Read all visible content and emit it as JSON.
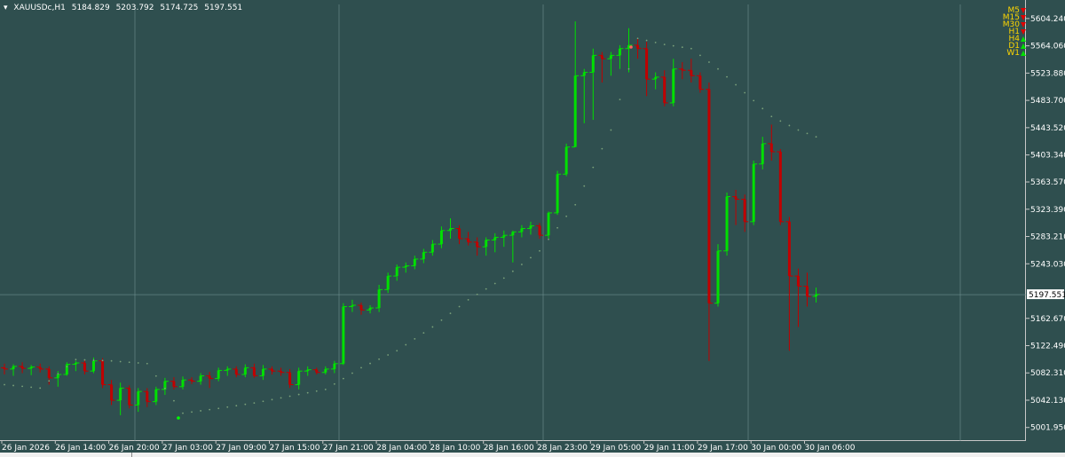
{
  "header": {
    "symbol": "XAUUSDc,H1",
    "open": "5184.829",
    "high": "5203.792",
    "low": "5174.725",
    "close": "5197.551",
    "menu_icon": "chevron-down-icon"
  },
  "timeframes": [
    {
      "label": "M5",
      "direction": "down"
    },
    {
      "label": "M15",
      "direction": "down"
    },
    {
      "label": "M30",
      "direction": "down"
    },
    {
      "label": "H1",
      "direction": "down"
    },
    {
      "label": "H4",
      "direction": "up"
    },
    {
      "label": "D1",
      "direction": "up"
    },
    {
      "label": "W1",
      "direction": "up"
    }
  ],
  "colors": {
    "background": "#2f4f4f",
    "bull": "#00e000",
    "bear": "#c00000",
    "grid": "#6f8f8f",
    "psar": "#7aa07a",
    "axis_text": "#ffffff",
    "current_price_bg": "#ffffff"
  },
  "current_price_label": "5197.551",
  "chart_data": {
    "type": "candlestick",
    "timeframe": "H1",
    "ylim": [
      1981.0,
      5625.0
    ],
    "y_ticks": [
      "5604.240",
      "5564.060",
      "5523.880",
      "5483.700",
      "5443.520",
      "5403.340",
      "5363.570",
      "5323.390",
      "5283.210",
      "5243.030",
      "5162.670",
      "5122.490",
      "5082.310",
      "5042.130",
      "5001.950"
    ],
    "x_ticks": [
      "26 Jan 2026",
      "26 Jan 14:00",
      "26 Jan 20:00",
      "27 Jan 03:00",
      "27 Jan 09:00",
      "27 Jan 15:00",
      "27 Jan 21:00",
      "28 Jan 04:00",
      "28 Jan 10:00",
      "28 Jan 16:00",
      "28 Jan 23:00",
      "29 Jan 05:00",
      "29 Jan 11:00",
      "29 Jan 17:00",
      "30 Jan 00:00",
      "30 Jan 06:00"
    ],
    "grid": "partial",
    "candles": [
      {
        "o": 5090,
        "h": 5096,
        "l": 5080,
        "c": 5088
      },
      {
        "o": 5088,
        "h": 5095,
        "l": 5078,
        "c": 5092
      },
      {
        "o": 5092,
        "h": 5098,
        "l": 5082,
        "c": 5089
      },
      {
        "o": 5089,
        "h": 5094,
        "l": 5079,
        "c": 5091
      },
      {
        "o": 5091,
        "h": 5096,
        "l": 5083,
        "c": 5088
      },
      {
        "o": 5088,
        "h": 5092,
        "l": 5065,
        "c": 5075
      },
      {
        "o": 5075,
        "h": 5085,
        "l": 5062,
        "c": 5080
      },
      {
        "o": 5080,
        "h": 5098,
        "l": 5078,
        "c": 5095
      },
      {
        "o": 5095,
        "h": 5100,
        "l": 5085,
        "c": 5097
      },
      {
        "o": 5097,
        "h": 5102,
        "l": 5080,
        "c": 5085
      },
      {
        "o": 5085,
        "h": 5105,
        "l": 5082,
        "c": 5100
      },
      {
        "o": 5100,
        "h": 5104,
        "l": 5060,
        "c": 5065
      },
      {
        "o": 5065,
        "h": 5072,
        "l": 5035,
        "c": 5042
      },
      {
        "o": 5042,
        "h": 5068,
        "l": 5020,
        "c": 5060
      },
      {
        "o": 5060,
        "h": 5064,
        "l": 5030,
        "c": 5035
      },
      {
        "o": 5035,
        "h": 5060,
        "l": 5025,
        "c": 5055
      },
      {
        "o": 5055,
        "h": 5060,
        "l": 5032,
        "c": 5040
      },
      {
        "o": 5040,
        "h": 5062,
        "l": 5035,
        "c": 5058
      },
      {
        "o": 5058,
        "h": 5075,
        "l": 5050,
        "c": 5070
      },
      {
        "o": 5070,
        "h": 5076,
        "l": 5058,
        "c": 5062
      },
      {
        "o": 5062,
        "h": 5077,
        "l": 5058,
        "c": 5072
      },
      {
        "o": 5072,
        "h": 5076,
        "l": 5066,
        "c": 5070
      },
      {
        "o": 5070,
        "h": 5082,
        "l": 5065,
        "c": 5078
      },
      {
        "o": 5078,
        "h": 5084,
        "l": 5060,
        "c": 5074
      },
      {
        "o": 5074,
        "h": 5090,
        "l": 5070,
        "c": 5086
      },
      {
        "o": 5086,
        "h": 5092,
        "l": 5078,
        "c": 5088
      },
      {
        "o": 5088,
        "h": 5092,
        "l": 5076,
        "c": 5080
      },
      {
        "o": 5080,
        "h": 5095,
        "l": 5076,
        "c": 5090
      },
      {
        "o": 5090,
        "h": 5096,
        "l": 5075,
        "c": 5078
      },
      {
        "o": 5078,
        "h": 5094,
        "l": 5072,
        "c": 5088
      },
      {
        "o": 5088,
        "h": 5092,
        "l": 5080,
        "c": 5085
      },
      {
        "o": 5085,
        "h": 5090,
        "l": 5078,
        "c": 5083
      },
      {
        "o": 5083,
        "h": 5088,
        "l": 5060,
        "c": 5065
      },
      {
        "o": 5065,
        "h": 5090,
        "l": 5058,
        "c": 5085
      },
      {
        "o": 5085,
        "h": 5092,
        "l": 5078,
        "c": 5087
      },
      {
        "o": 5087,
        "h": 5090,
        "l": 5080,
        "c": 5083
      },
      {
        "o": 5083,
        "h": 5092,
        "l": 5080,
        "c": 5088
      },
      {
        "o": 5088,
        "h": 5100,
        "l": 5082,
        "c": 5096
      },
      {
        "o": 5096,
        "h": 5185,
        "l": 5094,
        "c": 5180
      },
      {
        "o": 5180,
        "h": 5190,
        "l": 5172,
        "c": 5182
      },
      {
        "o": 5182,
        "h": 5186,
        "l": 5168,
        "c": 5175
      },
      {
        "o": 5175,
        "h": 5182,
        "l": 5170,
        "c": 5178
      },
      {
        "o": 5178,
        "h": 5212,
        "l": 5172,
        "c": 5205
      },
      {
        "o": 5205,
        "h": 5230,
        "l": 5200,
        "c": 5225
      },
      {
        "o": 5225,
        "h": 5242,
        "l": 5218,
        "c": 5238
      },
      {
        "o": 5238,
        "h": 5245,
        "l": 5230,
        "c": 5240
      },
      {
        "o": 5240,
        "h": 5255,
        "l": 5235,
        "c": 5250
      },
      {
        "o": 5250,
        "h": 5265,
        "l": 5244,
        "c": 5260
      },
      {
        "o": 5260,
        "h": 5278,
        "l": 5255,
        "c": 5272
      },
      {
        "o": 5272,
        "h": 5298,
        "l": 5266,
        "c": 5292
      },
      {
        "o": 5292,
        "h": 5310,
        "l": 5280,
        "c": 5295
      },
      {
        "o": 5295,
        "h": 5300,
        "l": 5272,
        "c": 5280
      },
      {
        "o": 5280,
        "h": 5290,
        "l": 5270,
        "c": 5275
      },
      {
        "o": 5275,
        "h": 5282,
        "l": 5255,
        "c": 5268
      },
      {
        "o": 5268,
        "h": 5282,
        "l": 5255,
        "c": 5278
      },
      {
        "o": 5278,
        "h": 5288,
        "l": 5260,
        "c": 5282
      },
      {
        "o": 5282,
        "h": 5292,
        "l": 5268,
        "c": 5285
      },
      {
        "o": 5285,
        "h": 5292,
        "l": 5245,
        "c": 5290
      },
      {
        "o": 5290,
        "h": 5300,
        "l": 5282,
        "c": 5295
      },
      {
        "o": 5295,
        "h": 5305,
        "l": 5286,
        "c": 5299
      },
      {
        "o": 5299,
        "h": 5303,
        "l": 5280,
        "c": 5285
      },
      {
        "o": 5285,
        "h": 5320,
        "l": 5280,
        "c": 5318
      },
      {
        "o": 5318,
        "h": 5380,
        "l": 5315,
        "c": 5375
      },
      {
        "o": 5375,
        "h": 5420,
        "l": 5372,
        "c": 5415
      },
      {
        "o": 5415,
        "h": 5600,
        "l": 5430,
        "c": 5520
      },
      {
        "o": 5520,
        "h": 5530,
        "l": 5450,
        "c": 5525
      },
      {
        "o": 5525,
        "h": 5560,
        "l": 5455,
        "c": 5550
      },
      {
        "o": 5550,
        "h": 5555,
        "l": 5510,
        "c": 5545
      },
      {
        "o": 5545,
        "h": 5555,
        "l": 5520,
        "c": 5550
      },
      {
        "o": 5550,
        "h": 5565,
        "l": 5530,
        "c": 5560
      },
      {
        "o": 5560,
        "h": 5590,
        "l": 5525,
        "c": 5565
      },
      {
        "o": 5565,
        "h": 5575,
        "l": 5545,
        "c": 5560
      },
      {
        "o": 5560,
        "h": 5570,
        "l": 5490,
        "c": 5515
      },
      {
        "o": 5515,
        "h": 5525,
        "l": 5500,
        "c": 5518
      },
      {
        "o": 5518,
        "h": 5528,
        "l": 5475,
        "c": 5480
      },
      {
        "o": 5480,
        "h": 5545,
        "l": 5475,
        "c": 5530
      },
      {
        "o": 5530,
        "h": 5540,
        "l": 5515,
        "c": 5528
      },
      {
        "o": 5528,
        "h": 5545,
        "l": 5510,
        "c": 5520
      },
      {
        "o": 5520,
        "h": 5525,
        "l": 5495,
        "c": 5500
      },
      {
        "o": 5500,
        "h": 5510,
        "l": 5100,
        "c": 5185
      },
      {
        "o": 5185,
        "h": 5272,
        "l": 5180,
        "c": 5262
      },
      {
        "o": 5262,
        "h": 5348,
        "l": 5255,
        "c": 5342
      },
      {
        "o": 5342,
        "h": 5352,
        "l": 5300,
        "c": 5338
      },
      {
        "o": 5338,
        "h": 5345,
        "l": 5290,
        "c": 5305
      },
      {
        "o": 5305,
        "h": 5395,
        "l": 5300,
        "c": 5390
      },
      {
        "o": 5390,
        "h": 5430,
        "l": 5382,
        "c": 5420
      },
      {
        "o": 5420,
        "h": 5448,
        "l": 5395,
        "c": 5408
      },
      {
        "o": 5408,
        "h": 5412,
        "l": 5300,
        "c": 5305
      },
      {
        "o": 5305,
        "h": 5312,
        "l": 5115,
        "c": 5225
      },
      {
        "o": 5225,
        "h": 5236,
        "l": 5150,
        "c": 5210
      },
      {
        "o": 5210,
        "h": 5230,
        "l": 5180,
        "c": 5195
      },
      {
        "o": 5195,
        "h": 5208,
        "l": 5186,
        "c": 5198
      }
    ],
    "psar": [
      {
        "i": 0,
        "v": 5065
      },
      {
        "i": 4,
        "v": 5060
      },
      {
        "i": 8,
        "v": 5102
      },
      {
        "i": 12,
        "v": 5100
      },
      {
        "i": 16,
        "v": 5096
      },
      {
        "i": 20,
        "v": 5023
      },
      {
        "i": 24,
        "v": 5030
      },
      {
        "i": 28,
        "v": 5038
      },
      {
        "i": 32,
        "v": 5048
      },
      {
        "i": 36,
        "v": 5058
      },
      {
        "i": 40,
        "v": 5090
      },
      {
        "i": 44,
        "v": 5115
      },
      {
        "i": 48,
        "v": 5150
      },
      {
        "i": 52,
        "v": 5190
      },
      {
        "i": 56,
        "v": 5222
      },
      {
        "i": 60,
        "v": 5262
      },
      {
        "i": 64,
        "v": 5330
      },
      {
        "i": 68,
        "v": 5440
      },
      {
        "i": 71,
        "v": 5575
      },
      {
        "i": 74,
        "v": 5566
      },
      {
        "i": 77,
        "v": 5560
      },
      {
        "i": 80,
        "v": 5530
      },
      {
        "i": 83,
        "v": 5495
      },
      {
        "i": 86,
        "v": 5460
      },
      {
        "i": 89,
        "v": 5440
      },
      {
        "i": 91,
        "v": 5430
      }
    ]
  }
}
